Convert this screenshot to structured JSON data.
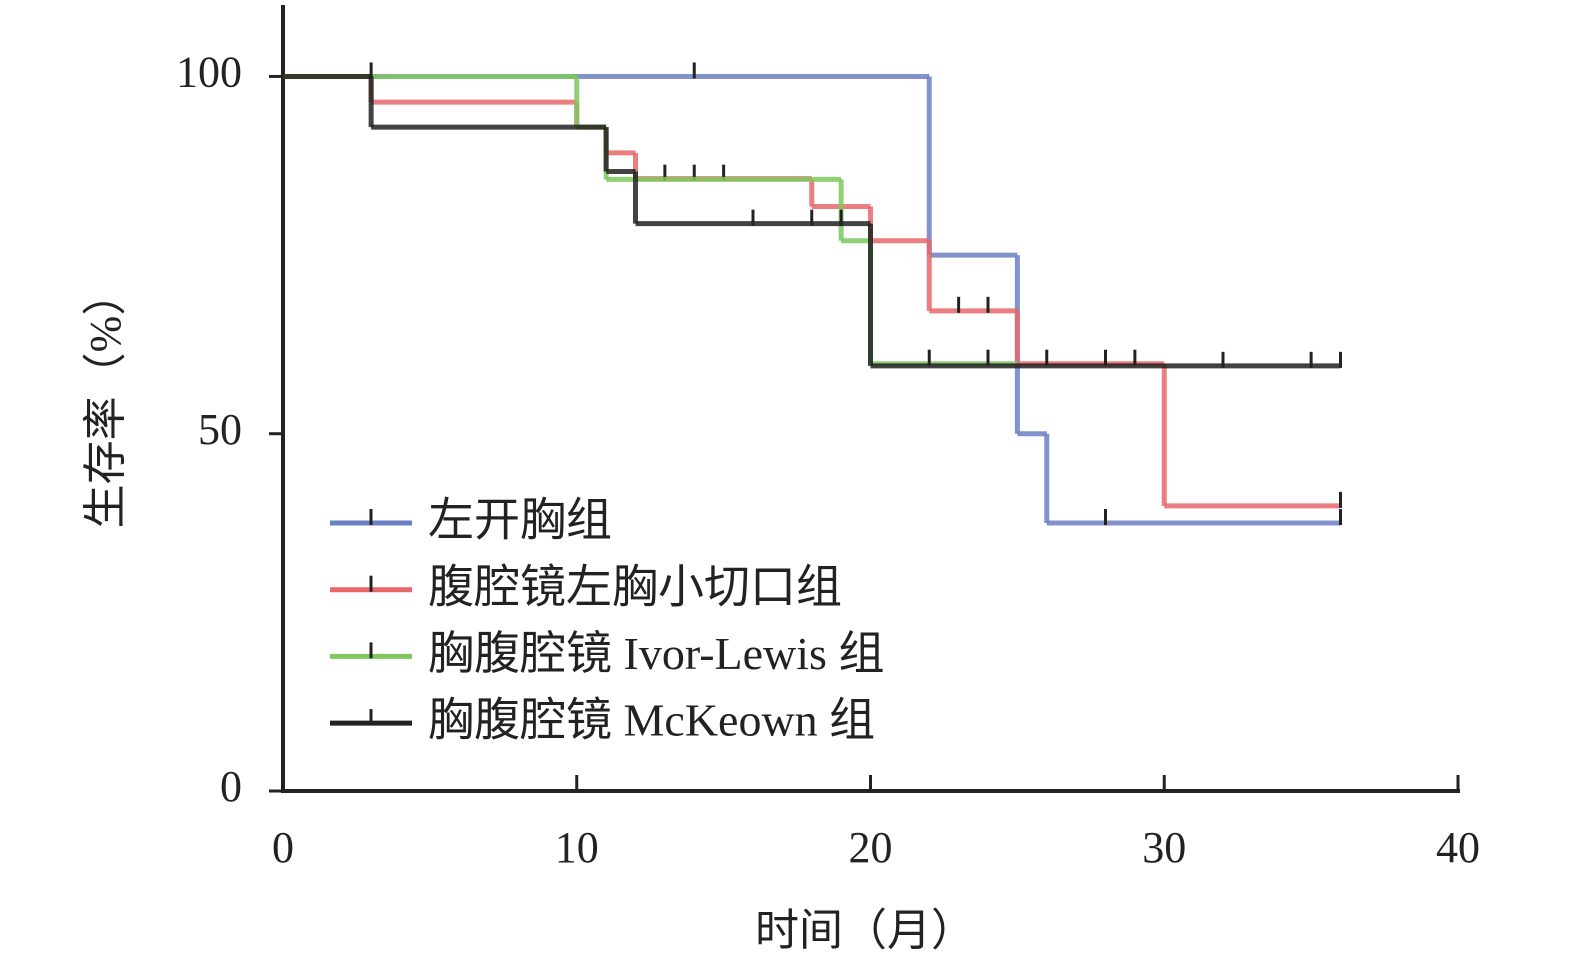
{
  "chart_data": {
    "type": "step",
    "y_label": "生存率（%）",
    "x_label": "时间（月）",
    "xlim": [
      0,
      40
    ],
    "xticks": [
      0,
      10,
      20,
      30,
      40
    ],
    "ylim": [
      0,
      110
    ],
    "yticks": [
      0,
      50,
      100
    ],
    "series": [
      {
        "name": "左开胸组",
        "color": "#6b7fc4",
        "x": [
          0,
          22,
          25,
          26,
          36
        ],
        "values": [
          100,
          75,
          50,
          37.5,
          37.5
        ],
        "censor_x": [
          14,
          28,
          36
        ],
        "censor_values": [
          100,
          37.5,
          37.5
        ]
      },
      {
        "name": "腹腔镜左胸小切口组",
        "color": "#e8676a",
        "x": [
          0,
          3,
          10,
          11,
          12,
          18,
          20,
          22,
          25,
          30,
          36
        ],
        "values": [
          100,
          96.4,
          92.9,
          89.3,
          85.7,
          81.8,
          77,
          67.2,
          59.8,
          39.9,
          39.9
        ],
        "censor_x": [
          13,
          14,
          15,
          23,
          24,
          26,
          28,
          29,
          36
        ],
        "censor_values": [
          85.7,
          85.7,
          85.7,
          67.2,
          67.2,
          59.8,
          59.8,
          59.8,
          39.9
        ]
      },
      {
        "name": "胸腹腔镜 Ivor-Lewis 组",
        "color": "#7dc95e",
        "x": [
          0,
          10,
          11,
          19,
          20,
          25
        ],
        "values": [
          100,
          92.9,
          85.6,
          77,
          59.8,
          59.8
        ],
        "censor_x": [
          22,
          24
        ],
        "censor_values": [
          59.8,
          59.8
        ]
      },
      {
        "name": "胸腹腔镜 McKeown 组",
        "color": "#222222",
        "x": [
          0,
          3,
          11,
          12,
          20,
          36
        ],
        "values": [
          100,
          92.9,
          86.7,
          79.4,
          59.5,
          59.5
        ],
        "censor_x": [
          3,
          16,
          18,
          19,
          32,
          35,
          36
        ],
        "censor_values": [
          100,
          79.4,
          79.4,
          79.4,
          59.5,
          59.5,
          59.5
        ]
      }
    ]
  }
}
